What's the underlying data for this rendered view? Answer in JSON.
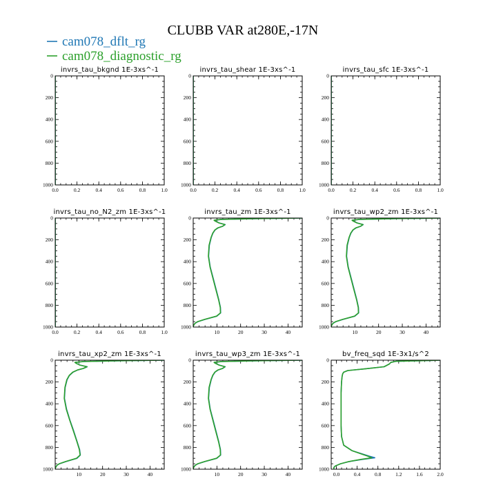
{
  "title": "CLUBB VAR at280E,-17N",
  "legend": [
    {
      "label": "cam078_dflt_rg",
      "color": "#1f77b4"
    },
    {
      "label": "cam078_diagnostic_rg",
      "color": "#2ca02c"
    }
  ],
  "chart_data": [
    {
      "type": "line",
      "title": "invrs_tau_bkgnd",
      "units": "1E-3xs^-1",
      "xlim": [
        0,
        1
      ],
      "xticks": [
        0,
        0.2,
        0.4,
        0.6,
        0.8,
        1
      ],
      "xtick_labels": [
        "0.0",
        "0.2",
        "0.4",
        "0.6",
        "0.8",
        "1.0"
      ],
      "ylim": [
        1000,
        0
      ],
      "yticks": [
        0,
        200,
        400,
        600,
        800,
        1000
      ],
      "ytick_labels": [
        "0",
        "200",
        "400",
        "600",
        "800",
        "1000"
      ],
      "y": [
        0,
        1000
      ],
      "series": [
        {
          "name": "cam078_dflt_rg",
          "x": [
            0,
            0
          ]
        },
        {
          "name": "cam078_diagnostic_rg",
          "x": [
            0,
            0
          ]
        }
      ]
    },
    {
      "type": "line",
      "title": "invrs_tau_shear",
      "units": "1E-3xs^-1",
      "xlim": [
        0,
        1
      ],
      "xticks": [
        0,
        0.2,
        0.4,
        0.6,
        0.8,
        1
      ],
      "xtick_labels": [
        "0.0",
        "0.2",
        "0.4",
        "0.6",
        "0.8",
        "1.0"
      ],
      "ylim": [
        1000,
        0
      ],
      "yticks": [
        0,
        200,
        400,
        600,
        800,
        1000
      ],
      "ytick_labels": [
        "0",
        "200",
        "400",
        "600",
        "800",
        "1000"
      ],
      "y": [
        0,
        1000
      ],
      "series": [
        {
          "name": "cam078_dflt_rg",
          "x": [
            0,
            0
          ]
        },
        {
          "name": "cam078_diagnostic_rg",
          "x": [
            0,
            0
          ]
        }
      ]
    },
    {
      "type": "line",
      "title": "invrs_tau_sfc",
      "units": "1E-3xs^-1",
      "xlim": [
        0,
        1
      ],
      "xticks": [
        0,
        0.2,
        0.4,
        0.6,
        0.8,
        1
      ],
      "xtick_labels": [
        "0.0",
        "0.2",
        "0.4",
        "0.6",
        "0.8",
        "1.0"
      ],
      "ylim": [
        1000,
        0
      ],
      "yticks": [
        0,
        200,
        400,
        600,
        800,
        1000
      ],
      "ytick_labels": [
        "0",
        "200",
        "400",
        "600",
        "800",
        "1000"
      ],
      "y": [
        0,
        1000
      ],
      "series": [
        {
          "name": "cam078_dflt_rg",
          "x": [
            0,
            0
          ]
        },
        {
          "name": "cam078_diagnostic_rg",
          "x": [
            0,
            0
          ]
        }
      ]
    },
    {
      "type": "line",
      "title": "invrs_tau_no_N2_zm",
      "units": "1E-3xs^-1",
      "xlim": [
        0,
        1
      ],
      "xticks": [
        0,
        0.2,
        0.4,
        0.6,
        0.8,
        1
      ],
      "xtick_labels": [
        "0.0",
        "0.2",
        "0.4",
        "0.6",
        "0.8",
        "1.0"
      ],
      "ylim": [
        1000,
        0
      ],
      "yticks": [
        0,
        200,
        400,
        600,
        800,
        1000
      ],
      "ytick_labels": [
        "0",
        "200",
        "400",
        "600",
        "800",
        "1000"
      ],
      "y": [
        0,
        1000
      ],
      "series": [
        {
          "name": "cam078_dflt_rg",
          "x": [
            0,
            0
          ]
        },
        {
          "name": "cam078_diagnostic_rg",
          "x": [
            0,
            0
          ]
        }
      ]
    },
    {
      "type": "line",
      "title": "invrs_tau_zm",
      "units": "1E-3xs^-1",
      "xlim": [
        0,
        46
      ],
      "xticks": [
        10,
        20,
        30,
        40
      ],
      "xtick_labels": [
        "10",
        "20",
        "30",
        "40"
      ],
      "ylim": [
        1000,
        0
      ],
      "yticks": [
        0,
        200,
        400,
        600,
        800,
        1000
      ],
      "ytick_labels": [
        "0",
        "200",
        "400",
        "600",
        "800",
        "1000"
      ],
      "y": [
        0,
        5,
        12,
        20,
        30,
        45,
        60,
        75,
        90,
        110,
        140,
        180,
        250,
        350,
        450,
        550,
        650,
        750,
        820,
        870,
        900,
        930,
        950,
        965,
        980,
        990,
        1000
      ],
      "series": [
        {
          "name": "cam078_dflt_rg",
          "x": [
            46,
            28,
            12,
            9,
            9.5,
            11,
            13.5,
            12.5,
            10.5,
            9.2,
            8.3,
            7.6,
            6.8,
            6.5,
            7.2,
            8.4,
            9.6,
            10.8,
            11.5,
            11.6,
            10,
            5,
            2,
            0.8,
            0.3,
            0.1,
            0
          ]
        },
        {
          "name": "cam078_diagnostic_rg",
          "x": [
            46,
            27,
            11.8,
            8.8,
            9.4,
            10.9,
            13.4,
            12.4,
            10.4,
            9.1,
            8.2,
            7.5,
            6.7,
            6.4,
            7.1,
            8.3,
            9.5,
            10.7,
            11.4,
            11.5,
            9.8,
            4.8,
            1.9,
            0.8,
            0.3,
            0.1,
            0
          ]
        }
      ]
    },
    {
      "type": "line",
      "title": "invrs_tau_wp2_zm",
      "units": "1E-3xs^-1",
      "xlim": [
        0,
        46
      ],
      "xticks": [
        10,
        20,
        30,
        40
      ],
      "xtick_labels": [
        "10",
        "20",
        "30",
        "40"
      ],
      "ylim": [
        1000,
        0
      ],
      "yticks": [
        0,
        200,
        400,
        600,
        800,
        1000
      ],
      "ytick_labels": [
        "0",
        "200",
        "400",
        "600",
        "800",
        "1000"
      ],
      "y": [
        0,
        5,
        12,
        20,
        30,
        45,
        60,
        75,
        90,
        110,
        140,
        180,
        250,
        350,
        450,
        550,
        650,
        750,
        820,
        870,
        900,
        930,
        950,
        965,
        980,
        990,
        1000
      ],
      "series": [
        {
          "name": "cam078_dflt_rg",
          "x": [
            46,
            28,
            12,
            9,
            9.5,
            11,
            13.5,
            12.5,
            10.5,
            9.2,
            8.3,
            7.6,
            6.8,
            6.5,
            7.2,
            8.4,
            9.6,
            10.8,
            11.5,
            11.6,
            10,
            5,
            2,
            0.8,
            0.3,
            0.1,
            0
          ]
        },
        {
          "name": "cam078_diagnostic_rg",
          "x": [
            46,
            27,
            11.8,
            8.8,
            9.4,
            10.9,
            13.4,
            12.4,
            10.4,
            9.1,
            8.2,
            7.5,
            6.7,
            6.4,
            7.1,
            8.3,
            9.5,
            10.7,
            11.4,
            11.5,
            9.8,
            4.8,
            1.9,
            0.8,
            0.3,
            0.1,
            0
          ]
        }
      ]
    },
    {
      "type": "line",
      "title": "invrs_tau_xp2_zm",
      "units": "1E-3xs^-1",
      "xlim": [
        0,
        46
      ],
      "xticks": [
        10,
        20,
        30,
        40
      ],
      "xtick_labels": [
        "10",
        "20",
        "30",
        "40"
      ],
      "ylim": [
        1000,
        0
      ],
      "yticks": [
        0,
        200,
        400,
        600,
        800,
        1000
      ],
      "ytick_labels": [
        "0",
        "200",
        "400",
        "600",
        "800",
        "1000"
      ],
      "y": [
        0,
        5,
        12,
        20,
        30,
        45,
        60,
        75,
        90,
        110,
        140,
        180,
        250,
        350,
        450,
        550,
        650,
        750,
        820,
        870,
        900,
        930,
        950,
        965,
        980,
        990,
        1000
      ],
      "series": [
        {
          "name": "cam078_dflt_rg",
          "x": [
            46,
            28,
            12,
            8.5,
            9,
            10.5,
            13.5,
            12,
            9.5,
            7.5,
            6,
            5,
            4.2,
            3.9,
            4.8,
            6.2,
            7.8,
            9.3,
            10.3,
            10.6,
            9.2,
            4.6,
            1.8,
            0.7,
            0.3,
            0.1,
            0
          ]
        },
        {
          "name": "cam078_diagnostic_rg",
          "x": [
            46,
            27,
            11.8,
            8.3,
            8.9,
            10.4,
            13.4,
            11.9,
            9.4,
            7.4,
            5.9,
            4.9,
            4.1,
            3.8,
            4.7,
            6.1,
            7.7,
            9.2,
            10.2,
            10.5,
            9,
            4.4,
            1.7,
            0.7,
            0.3,
            0.1,
            0
          ]
        }
      ]
    },
    {
      "type": "line",
      "title": "invrs_tau_wp3_zm",
      "units": "1E-3xs^-1",
      "xlim": [
        0,
        46
      ],
      "xticks": [
        10,
        20,
        30,
        40
      ],
      "xtick_labels": [
        "10",
        "20",
        "30",
        "40"
      ],
      "ylim": [
        1000,
        0
      ],
      "yticks": [
        0,
        200,
        400,
        600,
        800,
        1000
      ],
      "ytick_labels": [
        "0",
        "200",
        "400",
        "600",
        "800",
        "1000"
      ],
      "y": [
        0,
        5,
        12,
        20,
        30,
        45,
        60,
        75,
        90,
        110,
        140,
        180,
        250,
        350,
        450,
        550,
        650,
        750,
        820,
        870,
        900,
        930,
        950,
        965,
        980,
        990,
        1000
      ],
      "series": [
        {
          "name": "cam078_dflt_rg",
          "x": [
            46,
            28,
            12,
            9,
            9.5,
            11,
            13.5,
            12.5,
            10.5,
            9.2,
            8.3,
            7.6,
            6.8,
            6.5,
            7.2,
            8.4,
            9.6,
            10.8,
            11.5,
            11.6,
            10,
            5,
            2,
            0.8,
            0.3,
            0.1,
            0
          ]
        },
        {
          "name": "cam078_diagnostic_rg",
          "x": [
            46,
            27,
            11.8,
            8.8,
            9.4,
            10.9,
            13.4,
            12.4,
            10.4,
            9.1,
            8.2,
            7.5,
            6.7,
            6.4,
            7.1,
            8.3,
            9.5,
            10.7,
            11.4,
            11.5,
            9.8,
            4.8,
            1.9,
            0.8,
            0.3,
            0.1,
            0
          ]
        }
      ]
    },
    {
      "type": "line",
      "title": "bv_freq_sqd",
      "units": "1E-3x1/s^2",
      "xlim": [
        -0.1,
        2.0
      ],
      "xticks": [
        0,
        0.4,
        0.8,
        1.2,
        1.6,
        2.0
      ],
      "xtick_labels": [
        "0.0",
        "0.4",
        "0.8",
        "1.2",
        "1.6",
        "2.0"
      ],
      "ylim": [
        1000,
        0
      ],
      "yticks": [
        0,
        200,
        400,
        600,
        800,
        1000
      ],
      "ytick_labels": [
        "0",
        "200",
        "400",
        "600",
        "800",
        "1000"
      ],
      "y": [
        0,
        5,
        10,
        20,
        35,
        60,
        80,
        95,
        110,
        125,
        150,
        200,
        300,
        400,
        500,
        600,
        700,
        780,
        830,
        860,
        880,
        895,
        910,
        930,
        950,
        970,
        985,
        1000
      ],
      "series": [
        {
          "name": "cam078_dflt_rg",
          "x": [
            2.0,
            1.6,
            1.15,
            1.05,
            1.02,
            0.92,
            0.55,
            0.22,
            0.14,
            0.12,
            0.11,
            0.1,
            0.09,
            0.09,
            0.09,
            0.09,
            0.1,
            0.14,
            0.3,
            0.5,
            0.63,
            0.74,
            0.5,
            0.25,
            0.08,
            -0.02,
            -0.05,
            -0.05
          ]
        },
        {
          "name": "cam078_diagnostic_rg",
          "x": [
            2.0,
            1.6,
            1.15,
            1.05,
            1.02,
            0.92,
            0.55,
            0.22,
            0.14,
            0.12,
            0.11,
            0.1,
            0.09,
            0.09,
            0.09,
            0.09,
            0.1,
            0.14,
            0.3,
            0.48,
            0.6,
            0.68,
            0.47,
            0.24,
            0.08,
            -0.02,
            -0.05,
            -0.05
          ]
        }
      ]
    }
  ]
}
